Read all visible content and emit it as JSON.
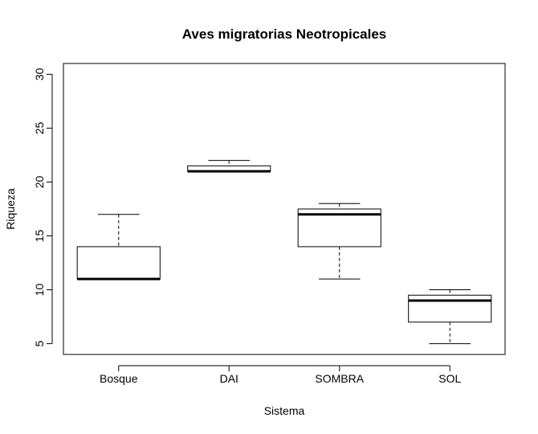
{
  "chart_data": {
    "type": "boxplot",
    "title": "Aves migratorias Neotropicales",
    "xlabel": "Sistema",
    "ylabel": "Riqueza",
    "ylim": [
      4,
      31
    ],
    "yticks": [
      5,
      10,
      15,
      20,
      25,
      30
    ],
    "ytick_labels": [
      "5",
      "10",
      "15",
      "20",
      "25",
      "30"
    ],
    "grid": false,
    "legend": "none",
    "categories": [
      "Bosque",
      "DAI",
      "SOMBRA",
      "SOL"
    ],
    "boxes": [
      {
        "category": "Bosque",
        "min": 11,
        "q1": 11,
        "median": 11,
        "q3": 14,
        "max": 17
      },
      {
        "category": "DAI",
        "min": 21,
        "q1": 21,
        "median": 21,
        "q3": 21.5,
        "max": 22
      },
      {
        "category": "SOMBRA",
        "min": 11,
        "q1": 14,
        "median": 17,
        "q3": 17.5,
        "max": 18
      },
      {
        "category": "SOL",
        "min": 5,
        "q1": 7,
        "median": 9,
        "q3": 9.5,
        "max": 10
      }
    ]
  }
}
